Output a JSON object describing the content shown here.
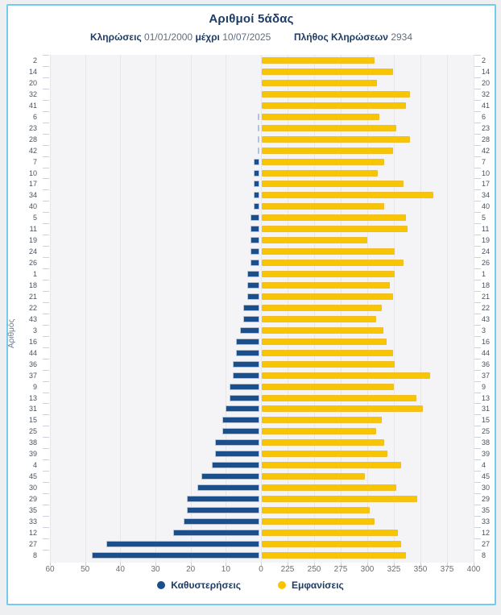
{
  "header": {
    "title": "Αριθμοί 5άδας",
    "subtitle": {
      "draws_label": "Κληρώσεις",
      "from_date": "01/01/2000",
      "until_label": "μέχρι",
      "to_date": "10/07/2025",
      "count_label": "Πλήθος Κληρώσεων",
      "count": "2934"
    }
  },
  "colors": {
    "panel_border": "#74cbee",
    "delay_bar": "#1a4f8c",
    "appearances_bar": "#f8c503",
    "title_text": "#1e3c64",
    "plot_background": "#f4f4f6",
    "gridline": "#e7e7ea"
  },
  "chart_data": {
    "type": "bar",
    "orientation": "horizontal-diverging",
    "title": "Αριθμοί 5άδας",
    "subtitle": "Κληρώσεις 01/01/2000 μέχρι 10/07/2025  Πλήθος Κληρώσεων 2934",
    "ylabel": "Αριθμός",
    "grid": true,
    "legend_position": "bottom",
    "legend": [
      {
        "label": "Καθυστερήσεις",
        "color": "#1a4f8c"
      },
      {
        "label": "Εμφανίσεις",
        "color": "#f8c503"
      }
    ],
    "left_axis": {
      "title": "Καθυστερήσεις",
      "ticks": [
        60,
        50,
        40,
        30,
        20,
        10,
        0
      ],
      "range": [
        0,
        60
      ]
    },
    "right_axis": {
      "title": "Εμφανίσεις",
      "ticks": [
        225,
        250,
        275,
        300,
        325,
        350,
        375,
        400
      ],
      "range_start": 200,
      "range_end": 400
    },
    "rows": [
      {
        "number": 2,
        "delay": 0,
        "appearances": 307
      },
      {
        "number": 14,
        "delay": 0,
        "appearances": 324
      },
      {
        "number": 20,
        "delay": 0,
        "appearances": 309
      },
      {
        "number": 32,
        "delay": 0,
        "appearances": 340
      },
      {
        "number": 41,
        "delay": 0,
        "appearances": 336
      },
      {
        "number": 6,
        "delay": 1,
        "appearances": 311
      },
      {
        "number": 23,
        "delay": 1,
        "appearances": 327
      },
      {
        "number": 28,
        "delay": 1,
        "appearances": 340
      },
      {
        "number": 42,
        "delay": 1,
        "appearances": 324
      },
      {
        "number": 7,
        "delay": 2,
        "appearances": 316
      },
      {
        "number": 10,
        "delay": 2,
        "appearances": 310
      },
      {
        "number": 17,
        "delay": 2,
        "appearances": 334
      },
      {
        "number": 34,
        "delay": 2,
        "appearances": 362
      },
      {
        "number": 40,
        "delay": 2,
        "appearances": 316
      },
      {
        "number": 5,
        "delay": 3,
        "appearances": 336
      },
      {
        "number": 11,
        "delay": 3,
        "appearances": 338
      },
      {
        "number": 19,
        "delay": 3,
        "appearances": 300
      },
      {
        "number": 24,
        "delay": 3,
        "appearances": 326
      },
      {
        "number": 26,
        "delay": 3,
        "appearances": 334
      },
      {
        "number": 1,
        "delay": 4,
        "appearances": 326
      },
      {
        "number": 18,
        "delay": 4,
        "appearances": 321
      },
      {
        "number": 21,
        "delay": 4,
        "appearances": 324
      },
      {
        "number": 22,
        "delay": 5,
        "appearances": 314
      },
      {
        "number": 43,
        "delay": 5,
        "appearances": 308
      },
      {
        "number": 3,
        "delay": 6,
        "appearances": 315
      },
      {
        "number": 16,
        "delay": 7,
        "appearances": 318
      },
      {
        "number": 44,
        "delay": 7,
        "appearances": 324
      },
      {
        "number": 36,
        "delay": 8,
        "appearances": 326
      },
      {
        "number": 37,
        "delay": 8,
        "appearances": 359
      },
      {
        "number": 9,
        "delay": 9,
        "appearances": 325
      },
      {
        "number": 13,
        "delay": 9,
        "appearances": 346
      },
      {
        "number": 31,
        "delay": 10,
        "appearances": 352
      },
      {
        "number": 15,
        "delay": 11,
        "appearances": 314
      },
      {
        "number": 25,
        "delay": 11,
        "appearances": 308
      },
      {
        "number": 38,
        "delay": 13,
        "appearances": 316
      },
      {
        "number": 39,
        "delay": 13,
        "appearances": 319
      },
      {
        "number": 4,
        "delay": 14,
        "appearances": 332
      },
      {
        "number": 45,
        "delay": 17,
        "appearances": 298
      },
      {
        "number": 30,
        "delay": 18,
        "appearances": 327
      },
      {
        "number": 29,
        "delay": 21,
        "appearances": 347
      },
      {
        "number": 35,
        "delay": 21,
        "appearances": 302
      },
      {
        "number": 33,
        "delay": 22,
        "appearances": 307
      },
      {
        "number": 12,
        "delay": 25,
        "appearances": 329
      },
      {
        "number": 27,
        "delay": 44,
        "appearances": 332
      },
      {
        "number": 8,
        "delay": 48,
        "appearances": 336
      }
    ]
  }
}
